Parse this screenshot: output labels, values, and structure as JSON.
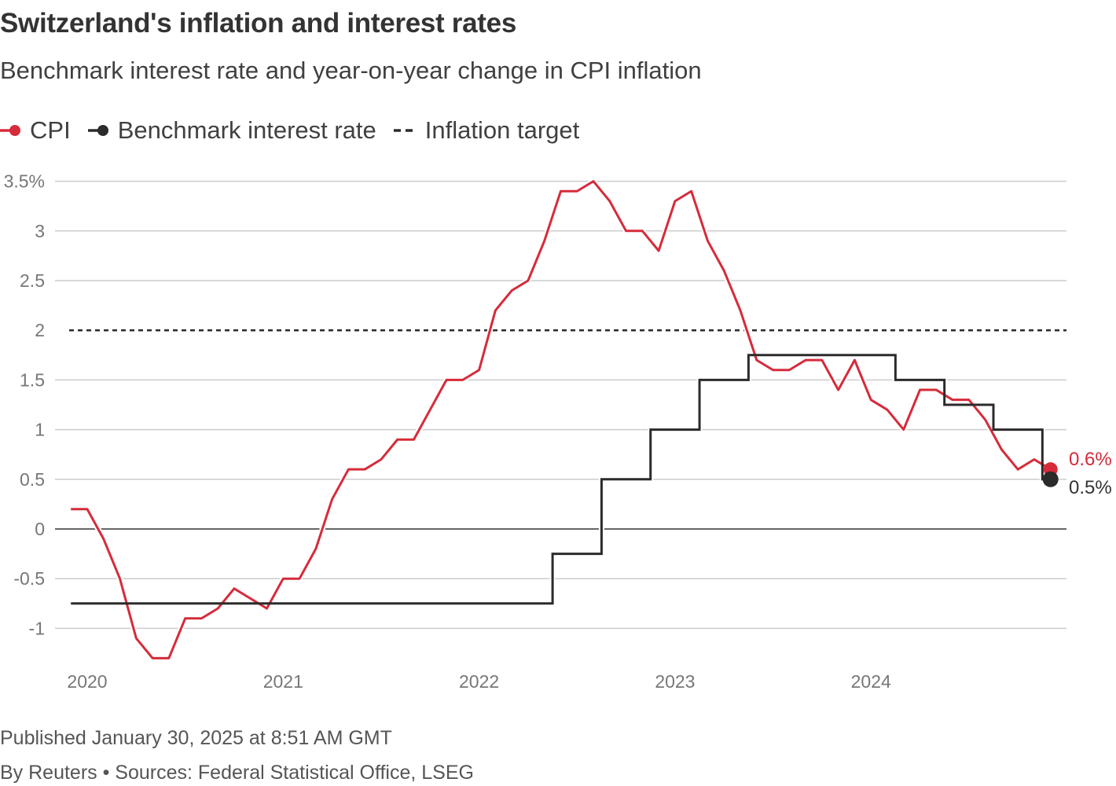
{
  "title": "Switzerland's inflation and interest rates",
  "subtitle": "Benchmark interest rate and year-on-year change in CPI inflation",
  "footer": {
    "published": "Published January 30, 2025 at 8:51 AM GMT",
    "byline": "By Reuters • Sources: Federal Statistical Office, LSEG"
  },
  "colors": {
    "cpi": "#d62b3a",
    "rate": "#2b2b2b",
    "target": "#2b2b2b",
    "grid": "#cccccc",
    "zero": "#333333"
  },
  "chart_data": {
    "type": "line",
    "legend": [
      {
        "label": "CPI",
        "color": "#d62b3a",
        "style": "line-dot"
      },
      {
        "label": "Benchmark interest rate",
        "color": "#2b2b2b",
        "style": "line-dot"
      },
      {
        "label": "Inflation target",
        "color": "#2b2b2b",
        "style": "dashed"
      }
    ],
    "legend_position": "top-left",
    "grid": true,
    "ylim": [
      -1.35,
      3.55
    ],
    "y_ticks": [
      3.5,
      3,
      2.5,
      2,
      1.5,
      1,
      0.5,
      0,
      -0.5,
      -1
    ],
    "y_tick_labels": [
      "3.5%",
      "3",
      "2.5",
      "2",
      "1.5",
      "1",
      "0.5",
      "0",
      "-0.5",
      "-1"
    ],
    "x_ticks": [
      "2020",
      "2021",
      "2022",
      "2023",
      "2024"
    ],
    "x_start": "2019-12",
    "x_end": "2024-12",
    "inflation_target": 2,
    "series": [
      {
        "name": "CPI",
        "step": false,
        "values": [
          0.2,
          0.2,
          -0.1,
          -0.5,
          -1.1,
          -1.3,
          -1.3,
          -0.9,
          -0.9,
          -0.8,
          -0.6,
          -0.7,
          -0.8,
          -0.5,
          -0.5,
          -0.2,
          0.3,
          0.6,
          0.6,
          0.7,
          0.9,
          0.9,
          1.2,
          1.5,
          1.5,
          1.6,
          2.2,
          2.4,
          2.5,
          2.9,
          3.4,
          3.4,
          3.5,
          3.3,
          3.0,
          3.0,
          2.8,
          3.3,
          3.4,
          2.9,
          2.6,
          2.2,
          1.7,
          1.6,
          1.6,
          1.7,
          1.7,
          1.4,
          1.7,
          1.3,
          1.2,
          1.0,
          1.4,
          1.4,
          1.3,
          1.3,
          1.1,
          0.8,
          0.6,
          0.7,
          0.6
        ],
        "end_label": "0.6%"
      },
      {
        "name": "Benchmark interest rate",
        "step": true,
        "values": [
          -0.75,
          -0.75,
          -0.75,
          -0.75,
          -0.75,
          -0.75,
          -0.75,
          -0.75,
          -0.75,
          -0.75,
          -0.75,
          -0.75,
          -0.75,
          -0.75,
          -0.75,
          -0.75,
          -0.75,
          -0.75,
          -0.75,
          -0.75,
          -0.75,
          -0.75,
          -0.75,
          -0.75,
          -0.75,
          -0.75,
          -0.75,
          -0.75,
          -0.75,
          -0.75,
          -0.25,
          -0.25,
          -0.25,
          0.5,
          0.5,
          0.5,
          1.0,
          1.0,
          1.0,
          1.5,
          1.5,
          1.5,
          1.75,
          1.75,
          1.75,
          1.75,
          1.75,
          1.75,
          1.75,
          1.75,
          1.75,
          1.5,
          1.5,
          1.5,
          1.25,
          1.25,
          1.25,
          1.0,
          1.0,
          1.0,
          0.5
        ],
        "end_label": "0.5%"
      }
    ]
  }
}
